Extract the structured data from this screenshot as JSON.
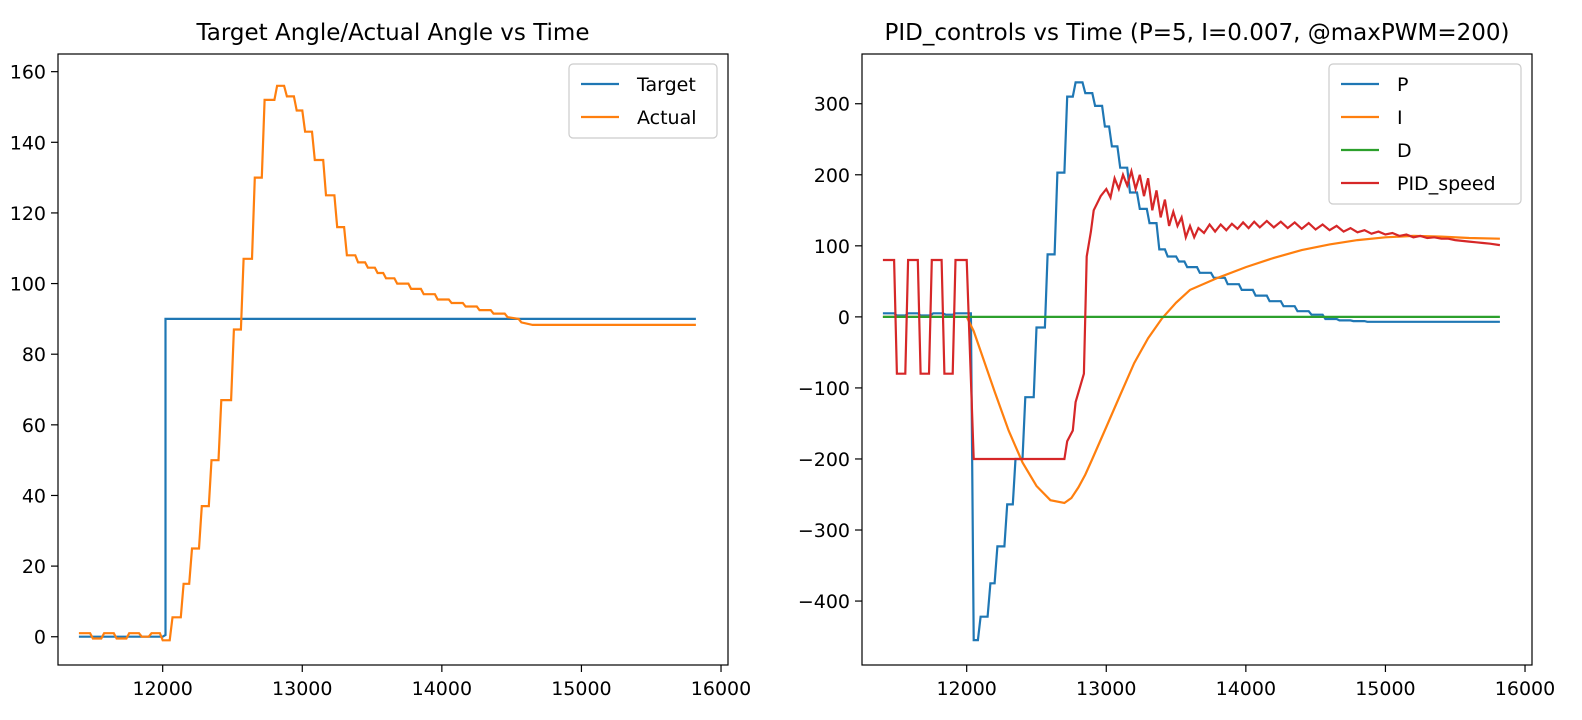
{
  "chart_data": [
    {
      "type": "line",
      "title": "Target Angle/Actual Angle vs Time",
      "xlabel": "",
      "ylabel": "",
      "xlim": [
        11250,
        16050
      ],
      "ylim": [
        -8,
        165
      ],
      "xticks": [
        12000,
        13000,
        14000,
        15000,
        16000
      ],
      "yticks": [
        0,
        20,
        40,
        60,
        80,
        100,
        120,
        140,
        160
      ],
      "grid": false,
      "legend": "top-right",
      "series": [
        {
          "name": "Target",
          "color": "#1f77b4",
          "x": [
            11400,
            12000,
            12020,
            12020,
            12040,
            15820
          ],
          "y": [
            0,
            0,
            0.5,
            90,
            90,
            90
          ]
        },
        {
          "name": "Actual",
          "color": "#ff7f0e",
          "x": [
            11400,
            11480,
            11500,
            11560,
            11580,
            11650,
            11670,
            11740,
            11760,
            11830,
            11850,
            11900,
            11920,
            11980,
            12000,
            12050,
            12070,
            12130,
            12150,
            12190,
            12210,
            12260,
            12280,
            12330,
            12350,
            12400,
            12420,
            12490,
            12510,
            12560,
            12580,
            12640,
            12660,
            12710,
            12730,
            12800,
            12820,
            12870,
            12890,
            12940,
            12960,
            13000,
            13020,
            13070,
            13090,
            13150,
            13170,
            13230,
            13250,
            13300,
            13320,
            13380,
            13400,
            13450,
            13470,
            13520,
            13540,
            13580,
            13600,
            13660,
            13680,
            13760,
            13780,
            13850,
            13870,
            13950,
            13970,
            14050,
            14070,
            14150,
            14170,
            14250,
            14270,
            14350,
            14370,
            14450,
            14470,
            14550,
            14570,
            14650,
            14670,
            14750,
            14770,
            14850,
            14870,
            14950,
            14970,
            15050,
            15070,
            15150,
            15170,
            15250,
            15270,
            15400,
            15550,
            15700,
            15820
          ],
          "y": [
            1,
            1,
            -0.5,
            -0.5,
            1,
            1,
            -0.5,
            -0.5,
            1,
            1,
            0,
            0,
            1,
            1,
            -1,
            -1,
            5.5,
            5.5,
            15,
            15,
            25,
            25,
            37,
            37,
            50,
            50,
            67,
            67,
            87,
            87,
            107,
            107,
            130,
            130,
            152,
            152,
            156,
            156,
            153,
            153,
            149,
            149,
            143,
            143,
            135,
            135,
            125,
            125,
            116,
            116,
            108,
            108,
            106,
            106,
            104.5,
            104.5,
            103,
            103,
            101.5,
            101.5,
            100,
            100,
            98.5,
            98.5,
            97,
            97,
            95.5,
            95.5,
            94.5,
            94.5,
            93.5,
            93.5,
            92.5,
            92.5,
            91.5,
            91.5,
            90.5,
            90,
            89,
            88.3,
            88.3,
            88.3,
            88.3,
            88.3,
            88.3,
            88.3,
            88.3,
            88.3,
            88.3,
            88.3,
            88.3,
            88.3,
            88.3,
            88.3,
            88.3,
            88.3,
            88.3
          ]
        }
      ]
    },
    {
      "type": "line",
      "title": "PID_controls vs Time (P=5, I=0.007, @maxPWM=200)",
      "xlabel": "",
      "ylabel": "",
      "xlim": [
        11250,
        16050
      ],
      "ylim": [
        -490,
        370
      ],
      "xticks": [
        12000,
        13000,
        14000,
        15000,
        16000
      ],
      "yticks": [
        -400,
        -300,
        -200,
        -100,
        0,
        100,
        200,
        300
      ],
      "yticklabels": [
        "−400",
        "−300",
        "−200",
        "−100",
        "0",
        "100",
        "200",
        "300"
      ],
      "grid": false,
      "legend": "top-right",
      "series": [
        {
          "name": "P",
          "color": "#1f77b4",
          "x": [
            11400,
            11480,
            11500,
            11560,
            11580,
            11650,
            11670,
            11740,
            11760,
            11830,
            11850,
            11900,
            11920,
            11980,
            12000,
            12030,
            12050,
            12080,
            12100,
            12150,
            12170,
            12200,
            12220,
            12270,
            12290,
            12330,
            12350,
            12400,
            12420,
            12480,
            12500,
            12560,
            12580,
            12630,
            12650,
            12700,
            12720,
            12760,
            12780,
            12830,
            12850,
            12900,
            12920,
            12970,
            12990,
            13020,
            13040,
            13080,
            13100,
            13150,
            13170,
            13220,
            13240,
            13290,
            13310,
            13360,
            13380,
            13420,
            13440,
            13500,
            13520,
            13560,
            13580,
            13650,
            13670,
            13750,
            13770,
            13850,
            13870,
            13950,
            13970,
            14050,
            14070,
            14150,
            14170,
            14250,
            14270,
            14350,
            14370,
            14450,
            14470,
            14550,
            14570,
            14650,
            14670,
            14750,
            14770,
            14850,
            14870,
            14950,
            14970,
            15050,
            15070,
            15150,
            15170,
            15300,
            15450,
            15600,
            15820
          ],
          "y": [
            5,
            5,
            2,
            2,
            5,
            5,
            2,
            2,
            5,
            5,
            3,
            3,
            5,
            5,
            5,
            5,
            -455,
            -455,
            -422,
            -422,
            -375,
            -375,
            -323,
            -323,
            -264,
            -264,
            -200,
            -200,
            -113,
            -113,
            -15,
            -15,
            88,
            88,
            203,
            203,
            310,
            310,
            330,
            330,
            315,
            315,
            297,
            297,
            268,
            268,
            240,
            240,
            210,
            210,
            175,
            175,
            152,
            152,
            132,
            132,
            95,
            95,
            85,
            85,
            78,
            78,
            70,
            70,
            62,
            62,
            55,
            55,
            46,
            46,
            38,
            38,
            30,
            30,
            22,
            22,
            15,
            15,
            8,
            8,
            3,
            3,
            -3,
            -3,
            -5,
            -5,
            -6,
            -6,
            -7,
            -7,
            -7,
            -7,
            -7,
            -7,
            -7,
            -7,
            -7,
            -7,
            -7
          ]
        },
        {
          "name": "I",
          "color": "#ff7f0e",
          "x": [
            11400,
            12000,
            12050,
            12100,
            12200,
            12300,
            12400,
            12500,
            12600,
            12700,
            12750,
            12800,
            12850,
            12900,
            13000,
            13100,
            13200,
            13300,
            13400,
            13500,
            13600,
            13800,
            14000,
            14200,
            14400,
            14600,
            14800,
            15000,
            15200,
            15400,
            15600,
            15820
          ],
          "y": [
            0,
            0,
            -20,
            -48,
            -105,
            -160,
            -205,
            -238,
            -258,
            -262,
            -255,
            -240,
            -222,
            -200,
            -155,
            -110,
            -65,
            -30,
            -2,
            20,
            38,
            55,
            70,
            83,
            94,
            102,
            108,
            112,
            114,
            113,
            111,
            110
          ]
        },
        {
          "name": "D",
          "color": "#2ca02c",
          "x": [
            11400,
            15820
          ],
          "y": [
            0,
            0
          ]
        },
        {
          "name": "PID_speed",
          "color": "#d62728",
          "x": [
            11400,
            11480,
            11500,
            11560,
            11580,
            11650,
            11670,
            11730,
            11750,
            11820,
            11840,
            11900,
            11920,
            12000,
            12050,
            12700,
            12720,
            12760,
            12780,
            12840,
            12860,
            12890,
            12910,
            12960,
            13000,
            13030,
            13060,
            13090,
            13120,
            13150,
            13180,
            13210,
            13240,
            13270,
            13300,
            13330,
            13360,
            13390,
            13420,
            13450,
            13480,
            13510,
            13540,
            13570,
            13600,
            13630,
            13660,
            13700,
            13740,
            13780,
            13820,
            13860,
            13900,
            13940,
            13980,
            14020,
            14060,
            14100,
            14150,
            14200,
            14250,
            14300,
            14350,
            14400,
            14450,
            14500,
            14550,
            14600,
            14650,
            14700,
            14750,
            14800,
            14850,
            14900,
            14950,
            15000,
            15050,
            15100,
            15150,
            15200,
            15250,
            15300,
            15350,
            15400,
            15450,
            15500,
            15550,
            15600,
            15650,
            15700,
            15750,
            15820
          ],
          "y": [
            80,
            80,
            -80,
            -80,
            80,
            80,
            -80,
            -80,
            80,
            80,
            -80,
            -80,
            80,
            80,
            -200,
            -200,
            -175,
            -160,
            -120,
            -80,
            85,
            120,
            150,
            170,
            180,
            168,
            195,
            180,
            200,
            185,
            205,
            180,
            200,
            170,
            195,
            150,
            178,
            140,
            165,
            128,
            148,
            128,
            140,
            112,
            128,
            112,
            125,
            118,
            130,
            120,
            130,
            122,
            131,
            124,
            133,
            125,
            134,
            126,
            135,
            126,
            134,
            125,
            133,
            124,
            132,
            123,
            130,
            122,
            128,
            120,
            125,
            119,
            122,
            117,
            120,
            116,
            118,
            114,
            116,
            112,
            114,
            111,
            112,
            110,
            110,
            108,
            107,
            106,
            105,
            104,
            103,
            101
          ]
        }
      ]
    }
  ]
}
